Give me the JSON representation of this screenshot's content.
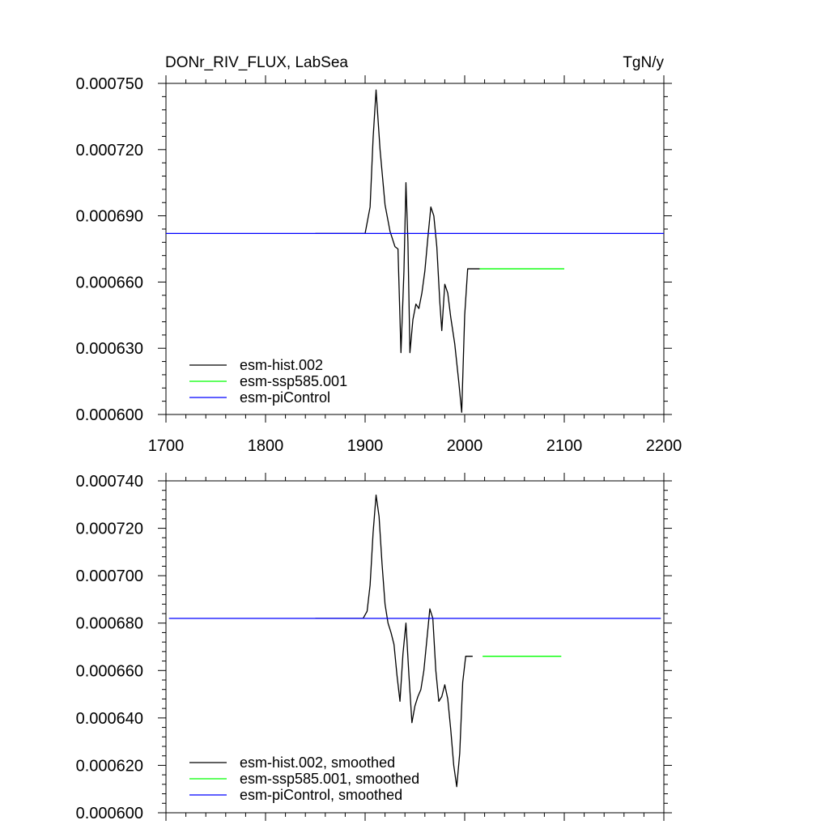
{
  "chart_data": [
    {
      "type": "line",
      "title": "DONr_RIV_FLUX, LabSea",
      "units": "TgN/y",
      "xlim": [
        1700,
        2200
      ],
      "ylim": [
        0.0006,
        0.00075
      ],
      "x_ticks": [
        1700,
        1800,
        1900,
        2000,
        2100,
        2200
      ],
      "x_tick_labels": [
        "1700",
        "1800",
        "1900",
        "2000",
        "2100",
        "2200"
      ],
      "y_ticks": [
        0.0006,
        0.00063,
        0.00066,
        0.00069,
        0.00072,
        0.00075
      ],
      "y_tick_labels": [
        "0.000600",
        "0.000630",
        "0.000660",
        "0.000690",
        "0.000720",
        "0.000750"
      ],
      "legend_position": "bottom-left",
      "series": [
        {
          "name": "esm-hist.002",
          "color": "#000000",
          "x": [
            1850,
            1900,
            1905,
            1908,
            1911,
            1915,
            1920,
            1925,
            1930,
            1933,
            1936,
            1939,
            1941,
            1943,
            1945,
            1948,
            1951,
            1954,
            1957,
            1960,
            1963,
            1966,
            1969,
            1972,
            1975,
            1977,
            1980,
            1983,
            1986,
            1990,
            1994,
            1997,
            2000,
            2003,
            2015
          ],
          "y": [
            0.000682,
            0.000682,
            0.000694,
            0.000725,
            0.000747,
            0.00072,
            0.000695,
            0.000683,
            0.000676,
            0.000675,
            0.000628,
            0.000665,
            0.000705,
            0.000678,
            0.000628,
            0.000643,
            0.00065,
            0.000648,
            0.000655,
            0.000665,
            0.00068,
            0.000694,
            0.00069,
            0.000676,
            0.000651,
            0.000638,
            0.000659,
            0.000655,
            0.000644,
            0.000632,
            0.000615,
            0.000601,
            0.000645,
            0.000666,
            0.000666
          ]
        },
        {
          "name": "esm-ssp585.001",
          "color": "#00ff00",
          "x": [
            2015,
            2100
          ],
          "y": [
            0.000666,
            0.000666
          ]
        },
        {
          "name": "esm-piControl",
          "color": "#0000ff",
          "x": [
            1700,
            2200
          ],
          "y": [
            0.000682,
            0.000682
          ]
        }
      ]
    },
    {
      "type": "line",
      "xlim": [
        1700,
        2200
      ],
      "ylim": [
        0.0006,
        0.00074
      ],
      "y_ticks": [
        0.0006,
        0.00062,
        0.00064,
        0.00066,
        0.00068,
        0.0007,
        0.00072,
        0.00074
      ],
      "y_tick_labels": [
        "0.000600",
        "0.000620",
        "0.000640",
        "0.000660",
        "0.000680",
        "0.000700",
        "0.000720",
        "0.000740"
      ],
      "legend_position": "bottom-left",
      "series": [
        {
          "name": "esm-hist.002, smoothed",
          "color": "#000000",
          "x": [
            1850,
            1898,
            1902,
            1905,
            1908,
            1911,
            1914,
            1917,
            1920,
            1923,
            1926,
            1929,
            1932,
            1935,
            1938,
            1941,
            1944,
            1947,
            1950,
            1953,
            1956,
            1959,
            1962,
            1965,
            1968,
            1971,
            1974,
            1977,
            1980,
            1983,
            1986,
            1989,
            1992,
            1995,
            1998,
            2001,
            2004,
            2008
          ],
          "y": [
            0.000682,
            0.000682,
            0.000685,
            0.000696,
            0.000718,
            0.000734,
            0.000725,
            0.000705,
            0.000688,
            0.00068,
            0.000676,
            0.000671,
            0.000658,
            0.000647,
            0.000667,
            0.00068,
            0.000658,
            0.000638,
            0.000645,
            0.000649,
            0.000652,
            0.00066,
            0.000673,
            0.000686,
            0.000682,
            0.00066,
            0.000647,
            0.000649,
            0.000654,
            0.000648,
            0.000635,
            0.00062,
            0.000611,
            0.000625,
            0.000655,
            0.000666,
            0.000666,
            0.000666
          ]
        },
        {
          "name": "esm-ssp585.001, smoothed",
          "color": "#00ff00",
          "x": [
            2018,
            2097
          ],
          "y": [
            0.000666,
            0.000666
          ]
        },
        {
          "name": "esm-piControl, smoothed",
          "color": "#0000ff",
          "x": [
            1703,
            2197
          ],
          "y": [
            0.000682,
            0.000682
          ]
        }
      ]
    }
  ]
}
